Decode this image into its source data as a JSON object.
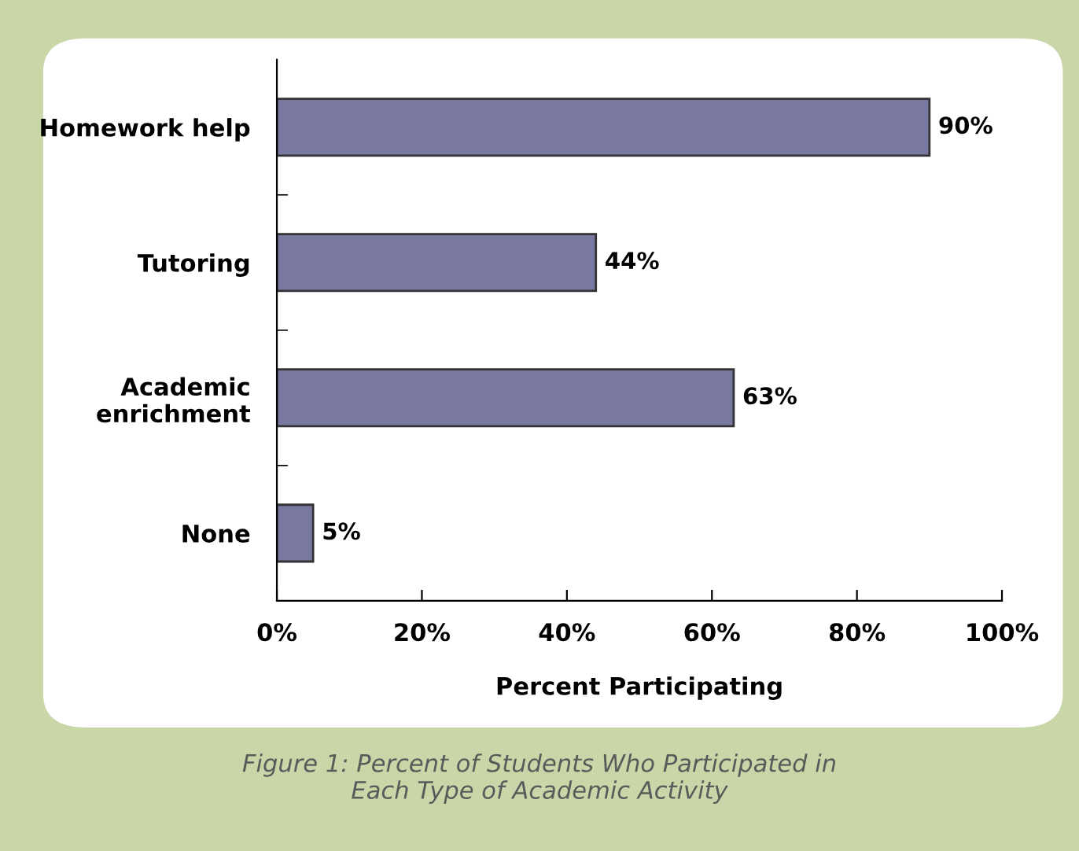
{
  "chart_data": {
    "type": "bar",
    "orientation": "horizontal",
    "xlabel": "Percent Participating",
    "categories": [
      "Homework help",
      "Tutoring",
      "Academic\nenrichment",
      "None"
    ],
    "values": [
      90,
      44,
      63,
      5
    ],
    "color": "#7878a0",
    "value_labels": [
      "90%",
      "44%",
      "63%",
      "5%"
    ],
    "xlim": [
      0,
      100
    ],
    "xticks": [
      {
        "value": 0,
        "label": "0%"
      },
      {
        "value": 20,
        "label": "20%"
      },
      {
        "value": 40,
        "label": "40%"
      },
      {
        "value": 60,
        "label": "60%"
      },
      {
        "value": 80,
        "label": "80%"
      },
      {
        "value": 100,
        "label": "100%"
      }
    ],
    "grid": false,
    "legend": false,
    "annotations": [
      "Figure 1: Percent of Students Who Participated in\nEach Type of Academic Activity"
    ]
  }
}
